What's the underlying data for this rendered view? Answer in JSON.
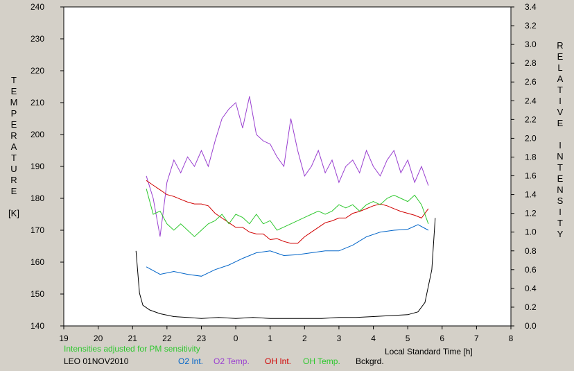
{
  "chart_data": {
    "type": "line",
    "xlabel": "Local Standard Time [h]",
    "y1label": [
      "T",
      "E",
      "M",
      "P",
      "E",
      "R",
      "A",
      "T",
      "U",
      "R",
      "E",
      "",
      "[K]"
    ],
    "y2label": [
      "R",
      "E",
      "L",
      "A",
      "T",
      "I",
      "V",
      "E",
      "",
      "I",
      "N",
      "T",
      "E",
      "N",
      "S",
      "I",
      "T",
      "Y"
    ],
    "note": "Intensities adjusted for PM sensitivity",
    "station": "LEO 01NOV2010",
    "x_ticks": [
      "19",
      "20",
      "21",
      "22",
      "23",
      "0",
      "1",
      "2",
      "3",
      "4",
      "5",
      "6",
      "7",
      "8"
    ],
    "x_range": [
      19,
      32
    ],
    "y1_range": [
      140,
      240
    ],
    "y1_ticks": [
      "140",
      "150",
      "160",
      "170",
      "180",
      "190",
      "200",
      "210",
      "220",
      "230",
      "240"
    ],
    "y2_range": [
      0,
      3.4
    ],
    "y2_ticks": [
      "0.0",
      "0.2",
      "0.4",
      "0.6",
      "0.8",
      "1.0",
      "1.2",
      "1.4",
      "1.6",
      "1.8",
      "2.0",
      "2.2",
      "2.4",
      "2.6",
      "2.8",
      "3.0",
      "3.2",
      "3.4"
    ],
    "series": [
      {
        "name": "O2 Int.",
        "axis": "right",
        "color": "#0064c8",
        "x": [
          21.4,
          21.8,
          22.2,
          22.6,
          23.0,
          23.4,
          23.8,
          24.2,
          24.6,
          25.0,
          25.4,
          25.8,
          26.2,
          26.6,
          27.0,
          27.4,
          27.8,
          28.2,
          28.6,
          29.0,
          29.3,
          29.6
        ],
        "y": [
          0.63,
          0.55,
          0.58,
          0.55,
          0.53,
          0.6,
          0.65,
          0.72,
          0.78,
          0.8,
          0.75,
          0.76,
          0.78,
          0.8,
          0.8,
          0.86,
          0.95,
          1.0,
          1.02,
          1.03,
          1.08,
          1.02
        ]
      },
      {
        "name": "O2 Temp.",
        "axis": "left",
        "color": "#9a40d0",
        "x": [
          21.4,
          21.6,
          21.8,
          22.0,
          22.2,
          22.4,
          22.6,
          22.8,
          23.0,
          23.2,
          23.4,
          23.6,
          23.8,
          24.0,
          24.2,
          24.4,
          24.6,
          24.8,
          25.0,
          25.2,
          25.4,
          25.6,
          25.8,
          26.0,
          26.2,
          26.4,
          26.6,
          26.8,
          27.0,
          27.2,
          27.4,
          27.6,
          27.8,
          28.0,
          28.2,
          28.4,
          28.6,
          28.8,
          29.0,
          29.2,
          29.4,
          29.6
        ],
        "y": [
          187,
          180,
          168,
          185,
          192,
          188,
          193,
          190,
          195,
          190,
          198,
          205,
          208,
          210,
          202,
          212,
          200,
          198,
          197,
          193,
          190,
          205,
          195,
          187,
          190,
          195,
          188,
          192,
          185,
          190,
          192,
          188,
          195,
          190,
          187,
          192,
          195,
          188,
          192,
          185,
          190,
          184
        ]
      },
      {
        "name": "OH Int.",
        "axis": "right",
        "color": "#d00000",
        "x": [
          21.4,
          21.6,
          21.8,
          22.0,
          22.2,
          22.4,
          22.6,
          22.8,
          23.0,
          23.2,
          23.4,
          23.6,
          23.8,
          24.0,
          24.2,
          24.4,
          24.6,
          24.8,
          25.0,
          25.2,
          25.4,
          25.6,
          25.8,
          26.0,
          26.2,
          26.4,
          26.6,
          26.8,
          27.0,
          27.2,
          27.4,
          27.6,
          27.8,
          28.0,
          28.2,
          28.4,
          28.6,
          28.8,
          29.0,
          29.2,
          29.4,
          29.6
        ],
        "y": [
          1.55,
          1.5,
          1.45,
          1.4,
          1.38,
          1.35,
          1.32,
          1.3,
          1.3,
          1.28,
          1.2,
          1.15,
          1.1,
          1.05,
          1.05,
          1.0,
          0.98,
          0.98,
          0.92,
          0.93,
          0.9,
          0.88,
          0.88,
          0.95,
          1.0,
          1.05,
          1.1,
          1.12,
          1.15,
          1.15,
          1.2,
          1.22,
          1.25,
          1.28,
          1.3,
          1.28,
          1.25,
          1.22,
          1.2,
          1.18,
          1.15,
          1.25
        ]
      },
      {
        "name": "OH Temp.",
        "axis": "left",
        "color": "#2ec82e",
        "x": [
          21.4,
          21.6,
          21.8,
          22.0,
          22.2,
          22.4,
          22.6,
          22.8,
          23.0,
          23.2,
          23.4,
          23.6,
          23.8,
          24.0,
          24.2,
          24.4,
          24.6,
          24.8,
          25.0,
          25.2,
          25.4,
          25.6,
          25.8,
          26.0,
          26.2,
          26.4,
          26.6,
          26.8,
          27.0,
          27.2,
          27.4,
          27.6,
          27.8,
          28.0,
          28.2,
          28.4,
          28.6,
          28.8,
          29.0,
          29.2,
          29.4,
          29.6
        ],
        "y": [
          183,
          175,
          176,
          172,
          170,
          172,
          170,
          168,
          170,
          172,
          173,
          175,
          172,
          175,
          174,
          172,
          175,
          172,
          173,
          170,
          171,
          172,
          173,
          174,
          175,
          176,
          175,
          176,
          178,
          177,
          178,
          176,
          178,
          179,
          178,
          180,
          181,
          180,
          179,
          181,
          178,
          172
        ]
      },
      {
        "name": "Bckgrd.",
        "axis": "right",
        "color": "#000000",
        "x": [
          21.1,
          21.2,
          21.3,
          21.5,
          21.8,
          22.2,
          22.6,
          23.0,
          23.5,
          24.0,
          24.5,
          25.0,
          25.5,
          26.0,
          26.5,
          27.0,
          27.5,
          28.0,
          28.5,
          29.0,
          29.3,
          29.5,
          29.7,
          29.8
        ],
        "y": [
          0.8,
          0.35,
          0.22,
          0.17,
          0.13,
          0.1,
          0.09,
          0.08,
          0.09,
          0.08,
          0.09,
          0.08,
          0.08,
          0.08,
          0.08,
          0.09,
          0.09,
          0.1,
          0.11,
          0.12,
          0.15,
          0.25,
          0.6,
          1.15
        ]
      }
    ]
  }
}
